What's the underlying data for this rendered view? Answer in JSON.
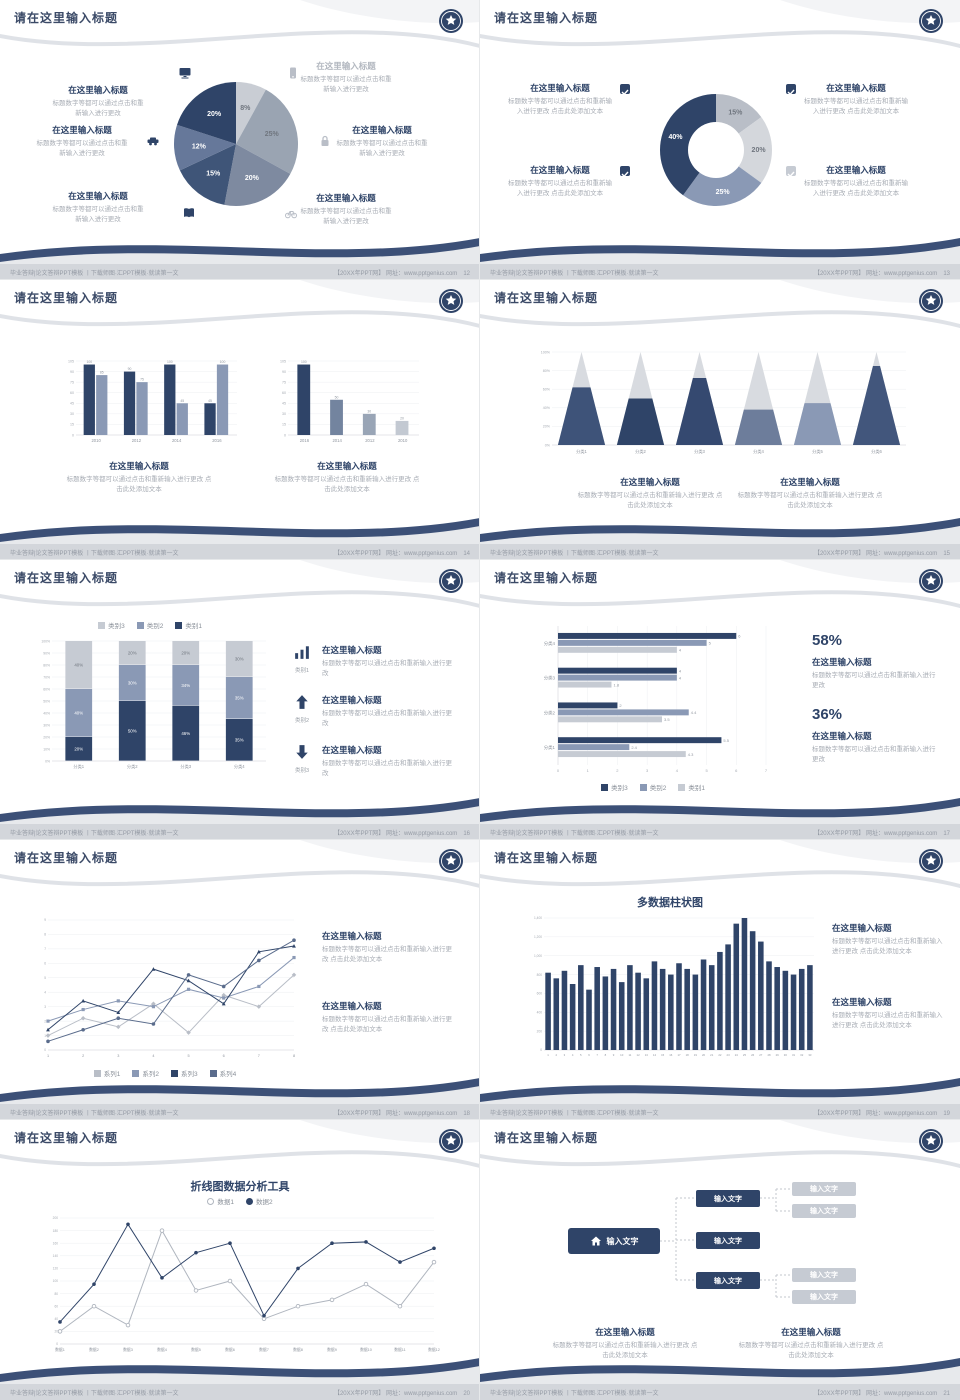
{
  "common": {
    "slide_title": "请在这里输入标题",
    "heading": "在这里输入标题",
    "body": "标题数字等都可以通过点击和重新输入进行更改",
    "body_more": "标题数字等都可以通过点击和重新输入进行更改 点击此处添加文本",
    "footer_left": "毕业答辩|论文答辩PPT模板 丨下载师图·汇PPT模板·就读第一文",
    "footer_right": "【20XX年PPT网】 网址：www.pptgenius.com",
    "colors": {
      "navy": "#2f4468",
      "steel": "#8a99b5",
      "gray": "#c6cbd3",
      "text_gray": "#a8adb5"
    }
  },
  "slides": [
    {
      "page": "12"
    },
    {
      "page": "13"
    },
    {
      "page": "14"
    },
    {
      "page": "15"
    },
    {
      "page": "16",
      "panel_labels": [
        "类别1",
        "类别2",
        "类别3"
      ]
    },
    {
      "page": "17",
      "stat1": "58%",
      "stat2": "36%"
    },
    {
      "page": "18"
    },
    {
      "page": "19"
    },
    {
      "page": "20"
    },
    {
      "page": "21",
      "org": {
        "main": "输入文字",
        "branch": "输入文字",
        "leaf": "输入文字"
      }
    }
  ],
  "chart_data": [
    {
      "type": "pie",
      "values": [
        8,
        25,
        20,
        15,
        12,
        20
      ],
      "labels": [
        "8%",
        "25%",
        "20%",
        "15%",
        "12%",
        "20%"
      ],
      "colors": [
        "#c9cdd4",
        "#9aa4b2",
        "#7e8aa0",
        "#3f5578",
        "#66789a",
        "#2f4468"
      ]
    },
    {
      "type": "donut",
      "values": [
        15,
        20,
        25,
        40
      ],
      "labels": [
        "15%",
        "20%",
        "25%",
        "40%"
      ],
      "colors": [
        "#b9bec7",
        "#d4d7dc",
        "#8a99b5",
        "#2f4468"
      ]
    },
    {
      "type": "bars",
      "categories": [
        "2010",
        "2012",
        "2014",
        "2016"
      ],
      "ymax": 105,
      "ytick": 15,
      "series": [
        {
          "name": "",
          "color": "#2f4468",
          "values": [
            100,
            90,
            100,
            45
          ]
        },
        {
          "name": "",
          "color": "#8a99b5",
          "values": [
            85,
            75,
            45,
            100
          ]
        }
      ]
    },
    {
      "type": "bars",
      "categories": [
        "2016",
        "2014",
        "2012",
        "2010"
      ],
      "ymax": 105,
      "ytick": 15,
      "series": [
        {
          "name": "",
          "colors": [
            "#2f4468",
            "#73849f",
            "#99a5b6",
            "#c3c9d2"
          ],
          "values": [
            100,
            50,
            30,
            20
          ]
        }
      ]
    },
    {
      "type": "pyramid",
      "categories": [
        "分类1",
        "分类2",
        "分类3",
        "分类4",
        "分类5",
        "分类6"
      ],
      "values": [
        62,
        50,
        72,
        38,
        45,
        85
      ],
      "rest": "#d8dbe0",
      "colors": [
        "#3e5379",
        "#2f4468",
        "#354970",
        "#6d7d9b",
        "#8a99b5",
        "#42567c"
      ]
    },
    {
      "type": "stacked",
      "categories": [
        "分类1",
        "分类2",
        "分类3",
        "分类4"
      ],
      "ymax": 100,
      "series": [
        {
          "name": "类别1",
          "color": "#2f4468",
          "values": [
            20,
            50,
            46,
            35
          ]
        },
        {
          "name": "类别2",
          "color": "#8a99b5",
          "values": [
            40,
            30,
            34,
            35
          ]
        },
        {
          "name": "类别3",
          "color": "#c6cbd3",
          "values": [
            40,
            20,
            20,
            30
          ]
        }
      ]
    },
    {
      "type": "hbars",
      "categories": [
        "分类4",
        "分类3",
        "分类2",
        "分类1"
      ],
      "xmax": 7,
      "series": [
        {
          "name": "类别3",
          "color": "#2f4468",
          "values": [
            6,
            4,
            2,
            5.5
          ]
        },
        {
          "name": "类别2",
          "color": "#8a99b5",
          "values": [
            5,
            4,
            4.4,
            2.4
          ]
        },
        {
          "name": "类别1",
          "color": "#c6cbd3",
          "values": [
            4,
            1.8,
            3.5,
            4.3
          ]
        }
      ]
    },
    {
      "type": "lines",
      "xlabels": [
        "1",
        "2",
        "3",
        "4",
        "5",
        "6",
        "7",
        "8"
      ],
      "ymax": 9,
      "ytick": 1,
      "series": [
        {
          "name": "系列1",
          "color": "#b9bec7",
          "marker": "diamond",
          "values": [
            1,
            2.2,
            1.6,
            3.2,
            1.2,
            3.8,
            3,
            5.2
          ]
        },
        {
          "name": "系列2",
          "color": "#8a99b5",
          "marker": "square",
          "values": [
            2,
            2.8,
            3.4,
            3,
            4.2,
            3.6,
            4.4,
            6.4
          ]
        },
        {
          "name": "系列3",
          "color": "#2f4468",
          "marker": "triangle",
          "values": [
            1.4,
            3.4,
            2.6,
            5.6,
            4.8,
            3.2,
            6.8,
            7.2
          ]
        },
        {
          "name": "系列4",
          "color": "#5a6c8c",
          "marker": "circle",
          "values": [
            0.6,
            1.4,
            2.2,
            1.8,
            5.2,
            4.4,
            6.2,
            7.6
          ]
        }
      ]
    },
    {
      "type": "columns",
      "title": "多数据柱状图",
      "color": "#2f4468",
      "ymax": 1400,
      "ytick": 200,
      "values": [
        820,
        760,
        840,
        700,
        900,
        640,
        880,
        780,
        860,
        720,
        900,
        820,
        760,
        940,
        860,
        800,
        920,
        860,
        800,
        960,
        900,
        1040,
        1120,
        1340,
        1400,
        1260,
        1150,
        940,
        880,
        840,
        800,
        860,
        900
      ]
    },
    {
      "type": "lines",
      "title": "折线图数据分析工具",
      "ymax": 200,
      "ytick": 20,
      "xlabels": [
        "数据1",
        "数据2",
        "数据3",
        "数据4",
        "数据5",
        "数据6",
        "数据7",
        "数据8",
        "数据9",
        "数据10",
        "数据11",
        "数据12"
      ],
      "series": [
        {
          "name": "数据1",
          "color": "#b0b6bf",
          "marker": "circle-open",
          "values": [
            20,
            60,
            30,
            180,
            85,
            100,
            40,
            60,
            70,
            95,
            60,
            130
          ]
        },
        {
          "name": "数据2",
          "color": "#2f4468",
          "marker": "circle",
          "values": [
            35,
            95,
            190,
            105,
            145,
            160,
            45,
            120,
            160,
            162,
            130,
            152
          ]
        }
      ]
    }
  ]
}
